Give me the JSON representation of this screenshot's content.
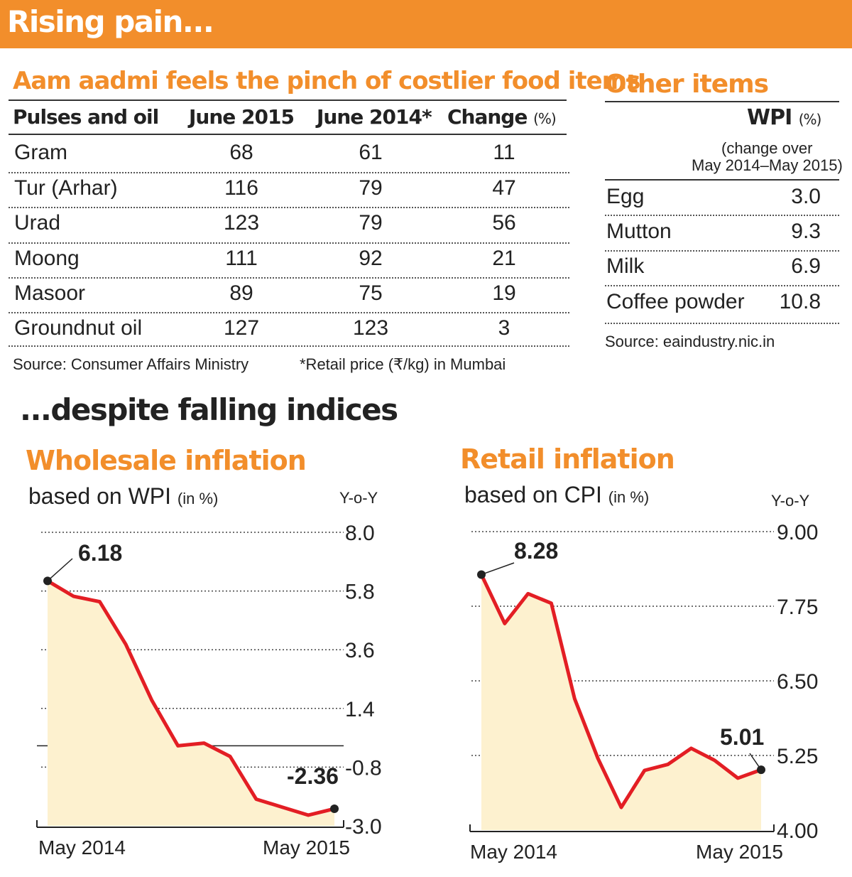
{
  "banner": {
    "title": "Rising pain..."
  },
  "food_table": {
    "title": "Aam aadmi feels the pinch of costlier food items",
    "headers": [
      "Pulses and oil",
      "June 2015",
      "June 2014*",
      "Change"
    ],
    "change_unit": "(%)",
    "rows": [
      {
        "item": "Gram",
        "june_2015": "68",
        "june_2014": "61",
        "change": "11"
      },
      {
        "item": "Tur (Arhar)",
        "june_2015": "116",
        "june_2014": "79",
        "change": "47"
      },
      {
        "item": "Urad",
        "june_2015": "123",
        "june_2014": "79",
        "change": "56"
      },
      {
        "item": "Moong",
        "june_2015": "111",
        "june_2014": "92",
        "change": "21"
      },
      {
        "item": "Masoor",
        "june_2015": "89",
        "june_2014": "75",
        "change": "19"
      },
      {
        "item": "Groundnut oil",
        "june_2015": "127",
        "june_2014": "123",
        "change": "3"
      }
    ],
    "source": "Source: Consumer Affairs Ministry",
    "note": "*Retail price (₹/kg) in Mumbai"
  },
  "other_items": {
    "title": "Other items",
    "header": "WPI",
    "header_unit": "(%)",
    "subheader_line1": "(change over",
    "subheader_line2": "May 2014–May 2015)",
    "rows": [
      {
        "item": "Egg",
        "value": "3.0"
      },
      {
        "item": "Mutton",
        "value": "9.3"
      },
      {
        "item": "Milk",
        "value": "6.9"
      },
      {
        "item": "Coffee powder",
        "value": "10.8"
      }
    ],
    "source": "Source: eaindustry.nic.in"
  },
  "section_title": "...despite falling indices",
  "colors": {
    "accent": "#f28e2b",
    "line": "#e31e24",
    "fill": "#fdf1cf"
  },
  "chart_data": [
    {
      "type": "area",
      "title": "Wholesale inflation",
      "subtitle": "based on WPI",
      "unit": "(in %)",
      "axis_note": "Y-o-Y",
      "x_start_label": "May 2014",
      "x_end_label": "May 2015",
      "y_ticks": [
        "8.0",
        "5.8",
        "3.6",
        "1.4",
        "-0.8",
        "-3.0"
      ],
      "ylim": [
        -3.0,
        8.0
      ],
      "values": [
        6.18,
        5.6,
        5.4,
        3.8,
        1.7,
        0.0,
        0.1,
        -0.4,
        -2.0,
        -2.3,
        -2.6,
        -2.36
      ],
      "first_label": "6.18",
      "last_label": "-2.36"
    },
    {
      "type": "area",
      "title": "Retail inflation",
      "subtitle": "based on CPI",
      "unit": "(in %)",
      "axis_note": "Y-o-Y",
      "x_start_label": "May 2014",
      "x_end_label": "May 2015",
      "y_ticks": [
        "9.00",
        "7.75",
        "6.50",
        "5.25",
        "4.00"
      ],
      "ylim": [
        4.0,
        9.0
      ],
      "values": [
        8.28,
        7.46,
        7.96,
        7.8,
        6.2,
        5.2,
        4.38,
        5.0,
        5.1,
        5.37,
        5.17,
        4.87,
        5.01
      ],
      "first_label": "8.28",
      "last_label": "5.01"
    }
  ]
}
